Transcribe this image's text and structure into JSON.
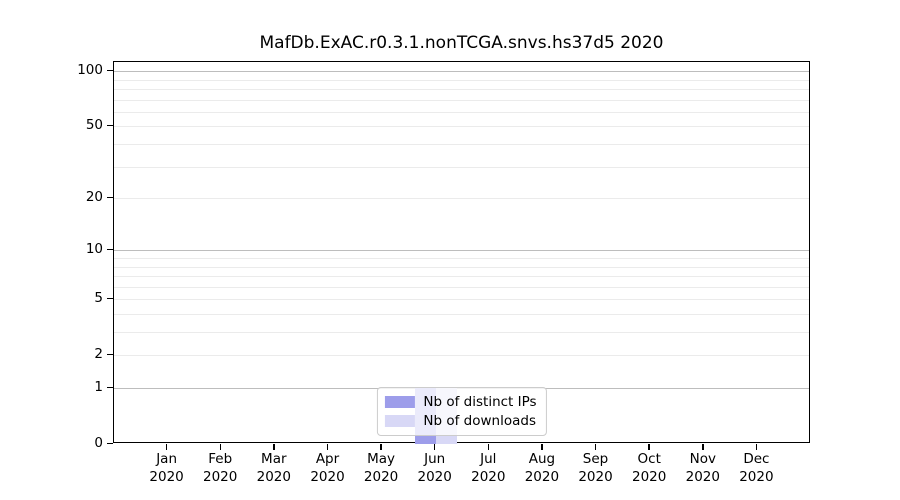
{
  "chart_data": {
    "type": "bar",
    "title": "MafDb.ExAC.r0.3.1.nonTCGA.snvs.hs37d5 2020",
    "categories": [
      "Jan 2020",
      "Feb 2020",
      "Mar 2020",
      "Apr 2020",
      "May 2020",
      "Jun 2020",
      "Jul 2020",
      "Aug 2020",
      "Sep 2020",
      "Oct 2020",
      "Nov 2020",
      "Dec 2020"
    ],
    "series": [
      {
        "name": "Nb of distinct IPs",
        "color": "#9d9dea",
        "values": [
          0,
          0,
          0,
          0,
          0,
          1,
          0,
          0,
          0,
          0,
          0,
          0
        ]
      },
      {
        "name": "Nb of downloads",
        "color": "#d8d8f6",
        "values": [
          0,
          0,
          0,
          0,
          0,
          1,
          0,
          0,
          0,
          0,
          0,
          0
        ]
      }
    ],
    "xlabel": "",
    "ylabel": "",
    "yscale": "log1p",
    "ylim": [
      0,
      112
    ],
    "yticks": [
      0,
      1,
      2,
      5,
      10,
      20,
      50,
      100
    ],
    "major_gridlines": [
      1,
      10,
      100
    ],
    "minor_gridlines": [
      2,
      3,
      4,
      5,
      6,
      7,
      8,
      9,
      20,
      30,
      40,
      50,
      60,
      70,
      80,
      90
    ],
    "grid": true,
    "legend_position": "lower center",
    "colors": {
      "major_grid": "#bdbdbd",
      "minor_grid": "#ebebeb",
      "axis": "#000000",
      "legend_border": "#cccccc",
      "background": "#ffffff"
    }
  }
}
